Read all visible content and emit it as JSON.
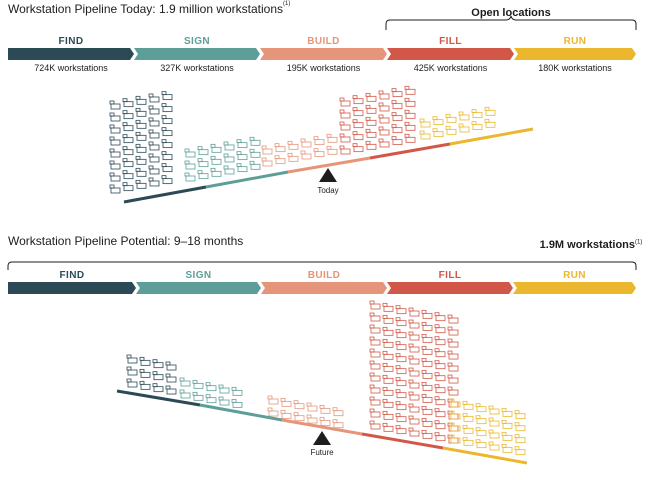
{
  "colors": {
    "find": "#2c4a56",
    "sign": "#5e9e98",
    "build": "#e5967a",
    "fill": "#d15848",
    "run": "#eab72e",
    "text": "#1d1d1d"
  },
  "today": {
    "title": "Workstation Pipeline Today: 1.9 million workstations",
    "title_footnote": "(1)",
    "bracket_label": "Open locations",
    "stages": [
      {
        "key": "find",
        "label": "FIND",
        "count_label": "724K workstations"
      },
      {
        "key": "sign",
        "label": "SIGN",
        "count_label": "327K workstations"
      },
      {
        "key": "build",
        "label": "BUILD",
        "count_label": "195K workstations"
      },
      {
        "key": "fill",
        "label": "FILL",
        "count_label": "425K workstations"
      },
      {
        "key": "run",
        "label": "RUN",
        "count_label": "180K workstations"
      }
    ],
    "marker_label": "Today"
  },
  "potential": {
    "title": "Workstation Pipeline Potential: 9–18 months",
    "bracket_label": "1.9M workstations",
    "bracket_footnote": "(1)",
    "stages": [
      {
        "key": "find",
        "label": "FIND"
      },
      {
        "key": "sign",
        "label": "SIGN"
      },
      {
        "key": "build",
        "label": "BUILD"
      },
      {
        "key": "fill",
        "label": "FILL"
      },
      {
        "key": "run",
        "label": "RUN"
      }
    ],
    "marker_label": "Future"
  }
}
